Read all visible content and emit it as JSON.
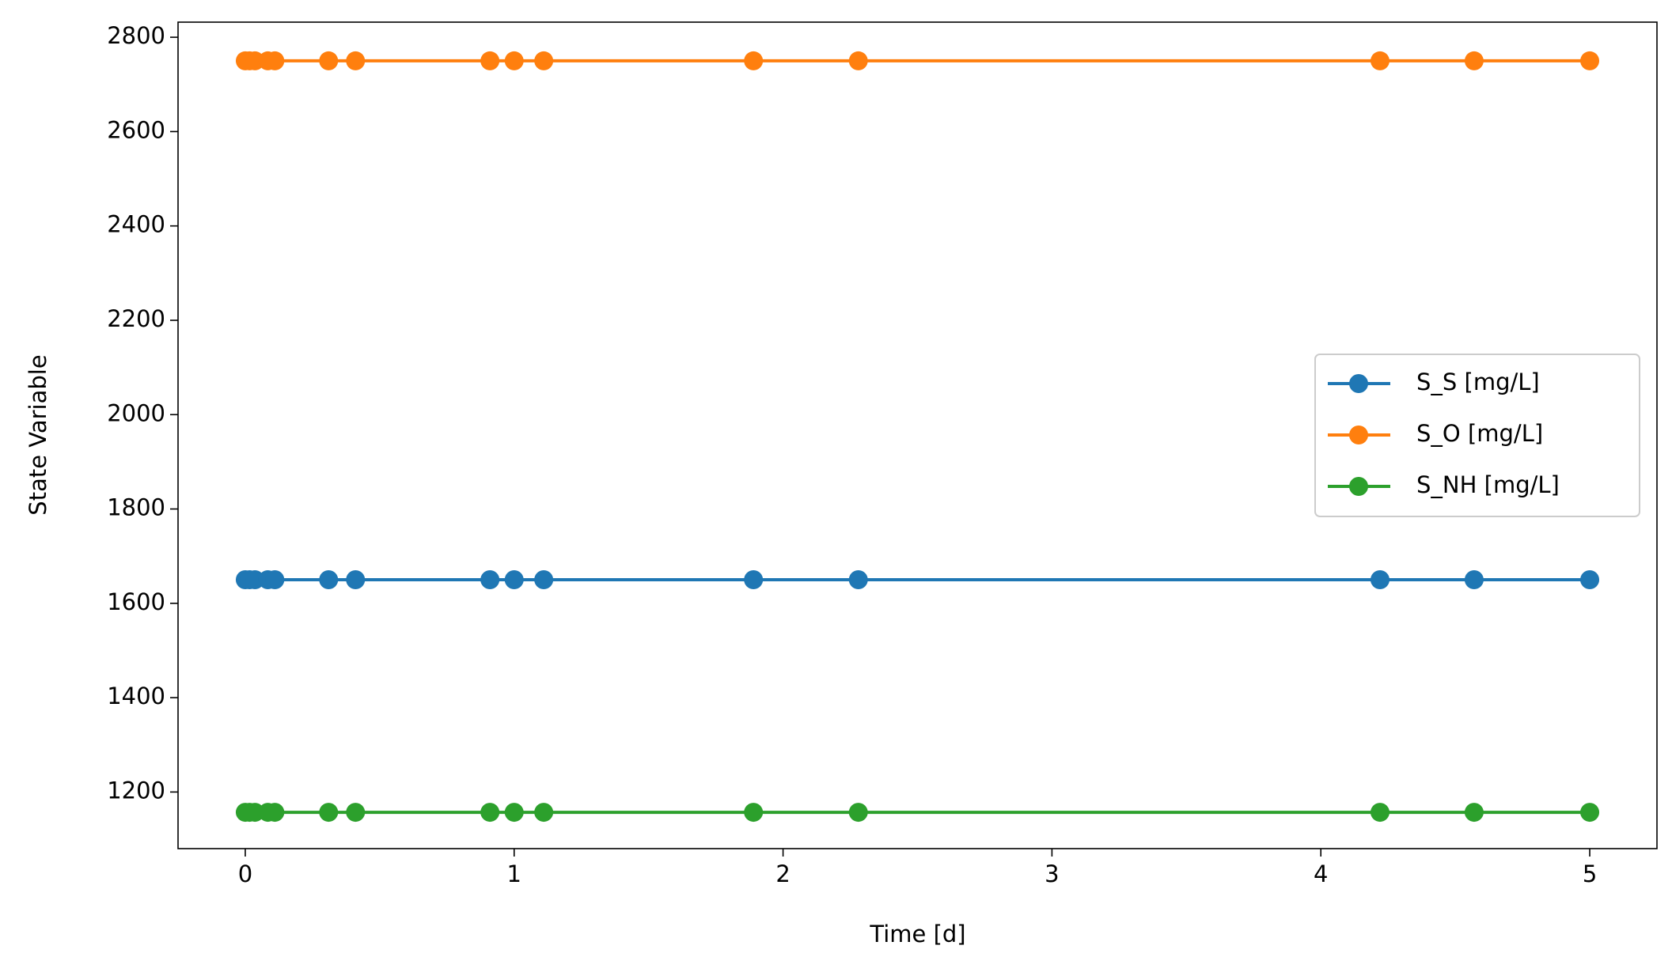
{
  "chart_data": {
    "type": "line",
    "xlabel": "Time [d]",
    "ylabel": "State Variable",
    "x": [
      0,
      0.016,
      0.036,
      0.084,
      0.11,
      0.31,
      0.41,
      0.91,
      1.0,
      1.11,
      1.89,
      2.28,
      4.22,
      4.57,
      5.0
    ],
    "series": [
      {
        "name": "S_S [mg/L]",
        "color": "#1f77b4",
        "values": [
          1650,
          1650,
          1650,
          1650,
          1650,
          1650,
          1650,
          1650,
          1650,
          1650,
          1650,
          1650,
          1650,
          1650,
          1650
        ]
      },
      {
        "name": "S_O [mg/L]",
        "color": "#ff7f0e",
        "values": [
          2750,
          2750,
          2750,
          2750,
          2750,
          2750,
          2750,
          2750,
          2750,
          2750,
          2750,
          2750,
          2750,
          2750,
          2750
        ]
      },
      {
        "name": "S_NH [mg/L]",
        "color": "#2ca02c",
        "values": [
          1157,
          1157,
          1157,
          1157,
          1157,
          1157,
          1157,
          1157,
          1157,
          1157,
          1157,
          1157,
          1157,
          1157,
          1157
        ]
      }
    ],
    "xlim": [
      -0.25,
      5.25
    ],
    "xticks": [
      0,
      1,
      2,
      3,
      4,
      5
    ],
    "ylim": [
      1080,
      2832
    ],
    "yticks": [
      1200,
      1400,
      1600,
      1800,
      2000,
      2200,
      2400,
      2600,
      2800
    ],
    "grid": false,
    "legend": "center right"
  }
}
